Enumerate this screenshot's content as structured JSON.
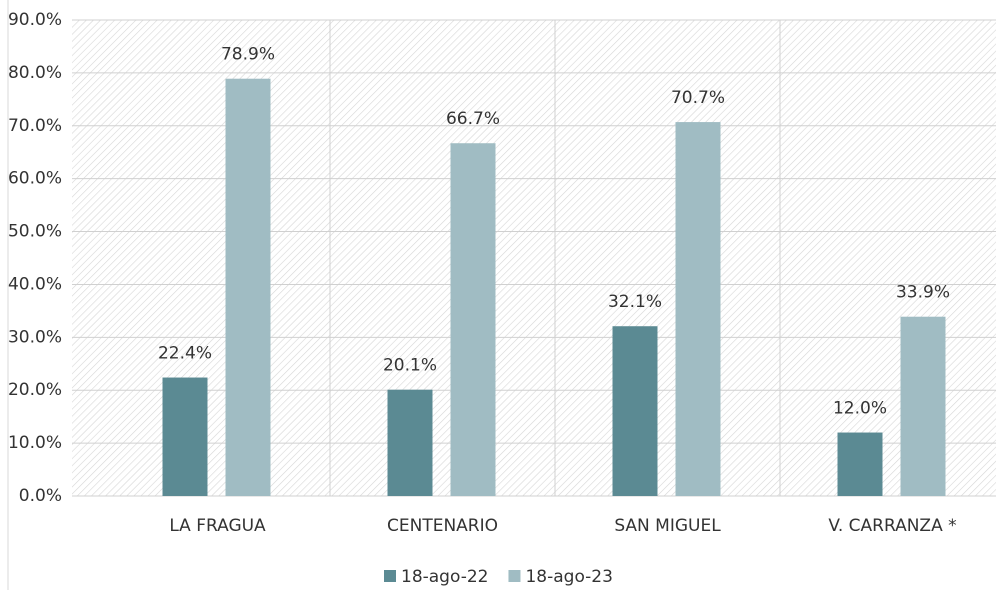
{
  "chart_data": {
    "type": "bar",
    "categories": [
      "LA FRAGUA",
      "CENTENARIO",
      "SAN MIGUEL",
      "V. CARRANZA *"
    ],
    "series": [
      {
        "name": "18-ago-22",
        "color": "#5b8a93",
        "values": [
          22.4,
          20.1,
          32.1,
          12.0
        ],
        "value_labels": [
          "22.4%",
          "20.1%",
          "32.1%",
          "12.0%"
        ]
      },
      {
        "name": "18-ago-23",
        "color": "#a0bcc3",
        "values": [
          78.9,
          66.7,
          70.7,
          33.9
        ],
        "value_labels": [
          "78.9%",
          "66.7%",
          "70.7%",
          "33.9%"
        ]
      }
    ],
    "ylim": [
      0,
      90
    ],
    "yticks": [
      {
        "value": 0,
        "label": "0.0%"
      },
      {
        "value": 10,
        "label": "10.0%"
      },
      {
        "value": 20,
        "label": "20.0%"
      },
      {
        "value": 30,
        "label": "30.0%"
      },
      {
        "value": 40,
        "label": "40.0%"
      },
      {
        "value": 50,
        "label": "50.0%"
      },
      {
        "value": 60,
        "label": "60.0%"
      },
      {
        "value": 70,
        "label": "70.0%"
      },
      {
        "value": 80,
        "label": "80.0%"
      },
      {
        "value": 90,
        "label": "90.0%"
      }
    ],
    "grid": true,
    "legend": "bottom"
  }
}
